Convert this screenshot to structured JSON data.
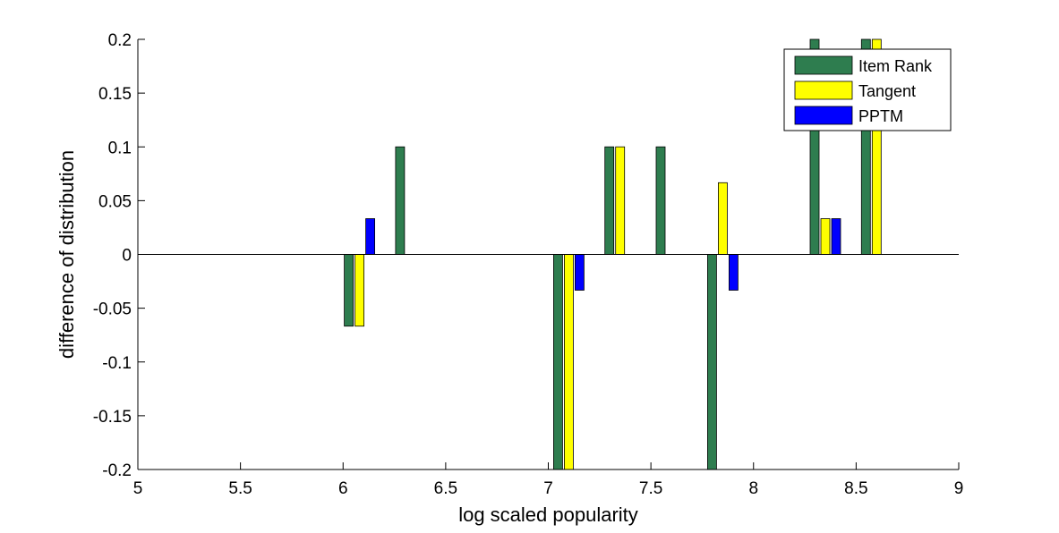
{
  "chart_data": {
    "type": "bar",
    "title": "",
    "xlabel": "log scaled popularity",
    "ylabel": "difference of distribution",
    "xlim": [
      5,
      9
    ],
    "ylim": [
      -0.2,
      0.2
    ],
    "xticks": [
      "5",
      "5.5",
      "6",
      "6.5",
      "7",
      "7.5",
      "8",
      "8.5",
      "9"
    ],
    "yticks": [
      "0.2",
      "0.15",
      "0.1",
      "0.05",
      "0",
      "-0.05",
      "-0.1",
      "-0.15",
      "-0.2"
    ],
    "x": [
      6.08,
      6.33,
      7.1,
      7.35,
      7.6,
      7.85,
      8.35,
      8.6
    ],
    "grid": false,
    "legend_position": "top-right",
    "series": [
      {
        "name": "Item Rank",
        "color": "#2e7d4f",
        "values": [
          -0.0667,
          0.1,
          -0.2,
          0.1,
          0.1,
          -0.2,
          0.2,
          0.2
        ]
      },
      {
        "name": "Tangent",
        "color": "#ffff00",
        "values": [
          -0.0667,
          0,
          -0.2,
          0.1,
          0,
          0.0667,
          0.0333,
          0.2
        ]
      },
      {
        "name": "PPTM",
        "color": "#0000ff",
        "values": [
          0.0333,
          0,
          -0.0333,
          0,
          0,
          -0.0333,
          0.0333,
          0
        ]
      }
    ]
  }
}
